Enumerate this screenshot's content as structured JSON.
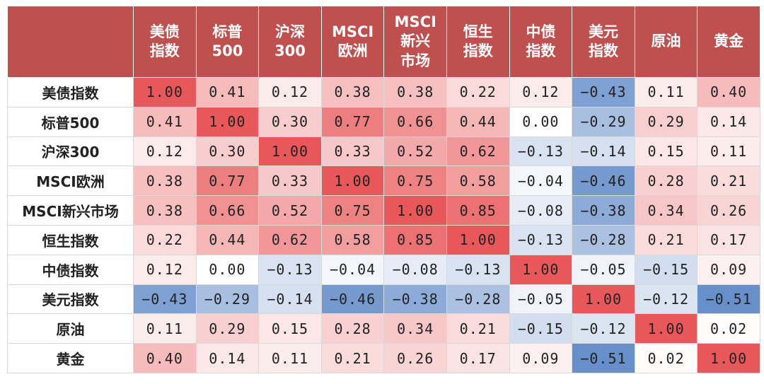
{
  "chart_data": {
    "type": "heatmap",
    "columns": [
      "美债\n指数",
      "标普\n500",
      "沪深\n300",
      "MSCI\n欧洲",
      "MSCI\n新兴\n市场",
      "恒生\n指数",
      "中债\n指数",
      "美元\n指数",
      "原油",
      "黄金"
    ],
    "rows": [
      "美债指数",
      "标普500",
      "沪深300",
      "MSCI欧洲",
      "MSCI新兴市场",
      "恒生指数",
      "中债指数",
      "美元指数",
      "原油",
      "黄金"
    ],
    "values": [
      [
        1.0,
        0.41,
        0.12,
        0.38,
        0.38,
        0.22,
        0.12,
        -0.43,
        0.11,
        0.4
      ],
      [
        0.41,
        1.0,
        0.3,
        0.77,
        0.66,
        0.44,
        0.0,
        -0.29,
        0.29,
        0.14
      ],
      [
        0.12,
        0.3,
        1.0,
        0.33,
        0.52,
        0.62,
        -0.13,
        -0.14,
        0.15,
        0.11
      ],
      [
        0.38,
        0.77,
        0.33,
        1.0,
        0.75,
        0.58,
        -0.04,
        -0.46,
        0.28,
        0.21
      ],
      [
        0.38,
        0.66,
        0.52,
        0.75,
        1.0,
        0.85,
        -0.08,
        -0.38,
        0.34,
        0.26
      ],
      [
        0.22,
        0.44,
        0.62,
        0.58,
        0.85,
        1.0,
        -0.13,
        -0.28,
        0.21,
        0.17
      ],
      [
        0.12,
        0.0,
        -0.13,
        -0.04,
        -0.08,
        -0.13,
        1.0,
        -0.05,
        -0.15,
        0.09
      ],
      [
        -0.43,
        -0.29,
        -0.14,
        -0.46,
        -0.38,
        -0.28,
        -0.05,
        1.0,
        -0.12,
        -0.51
      ],
      [
        0.11,
        0.29,
        0.15,
        0.28,
        0.34,
        0.21,
        -0.15,
        -0.12,
        1.0,
        0.02
      ],
      [
        0.4,
        0.14,
        0.11,
        0.21,
        0.26,
        0.17,
        0.09,
        -0.51,
        0.02,
        1.0
      ]
    ],
    "colors": {
      "header_bg": "#c0504d",
      "positive": "#e8585a",
      "negative": "#5b86c5",
      "neutral": "#ffffff"
    }
  }
}
